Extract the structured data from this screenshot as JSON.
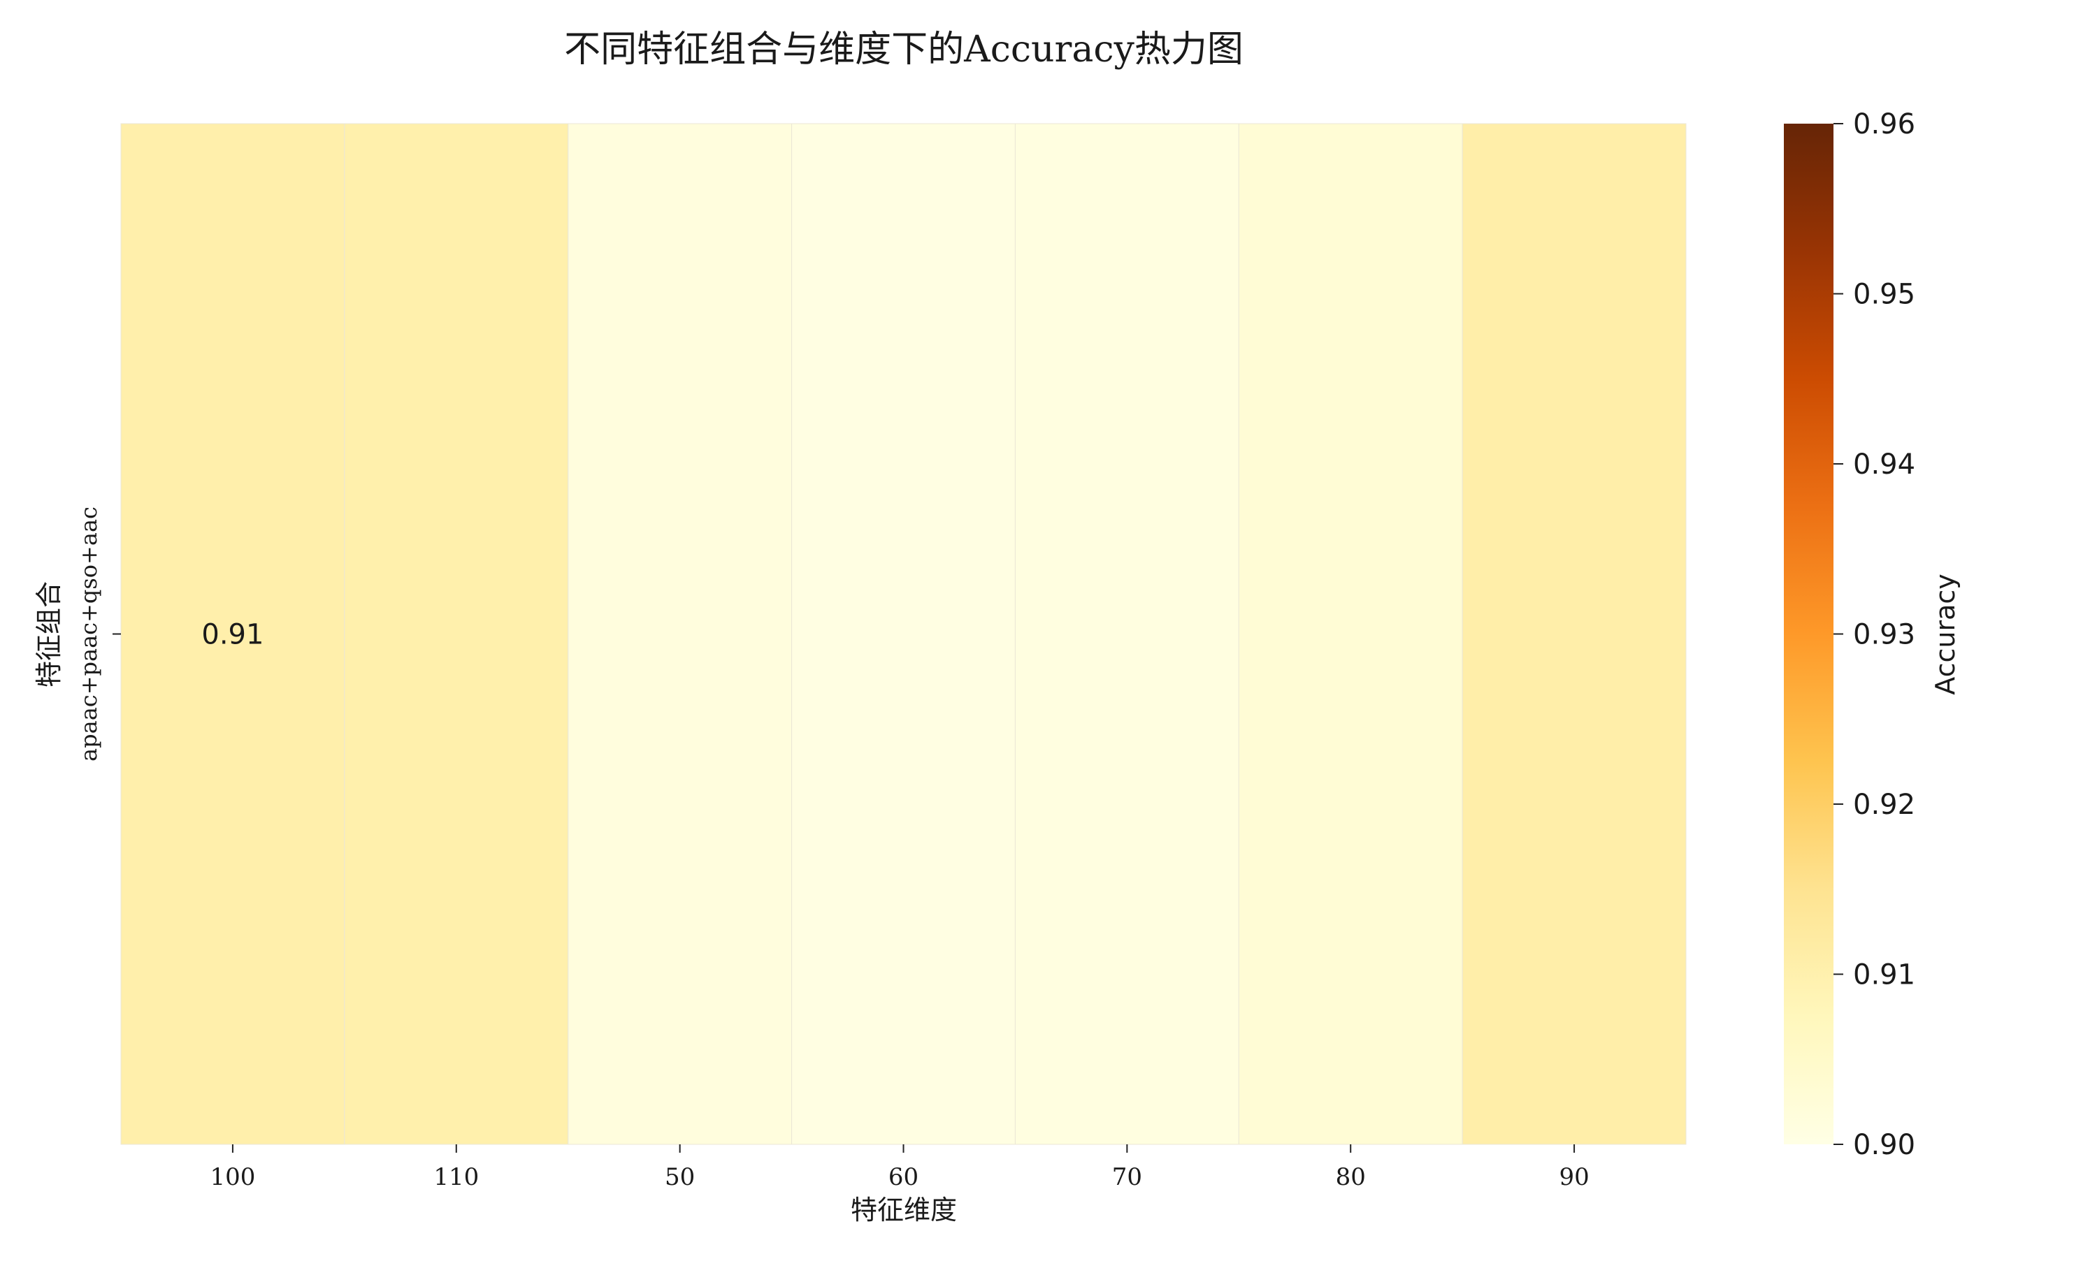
{
  "chart_data": {
    "type": "heatmap",
    "title": "不同特征组合与维度下的Accuracy热力图",
    "xlabel": "特征维度",
    "ylabel": "特征组合",
    "x_categories": [
      "100",
      "110",
      "50",
      "60",
      "70",
      "80",
      "90"
    ],
    "y_categories": [
      "apaac+paac+qso+aac"
    ],
    "values": [
      [
        0.9105,
        0.9103,
        0.9015,
        0.9005,
        0.901,
        0.903,
        0.9108
      ]
    ],
    "annotations": [
      {
        "row": 0,
        "col": 0,
        "text": "0.91"
      }
    ],
    "colorbar": {
      "label": "Accuracy",
      "range": [
        0.9,
        0.96
      ],
      "ticks": [
        "0.90",
        "0.91",
        "0.92",
        "0.93",
        "0.94",
        "0.95",
        "0.96"
      ],
      "colormap": "YlOrBr",
      "color_stops": [
        "#ffffe5",
        "#fff7bc",
        "#fee391",
        "#fec44f",
        "#fe9929",
        "#ec7014",
        "#cc4c02",
        "#993404",
        "#662506"
      ]
    },
    "grid": false
  }
}
